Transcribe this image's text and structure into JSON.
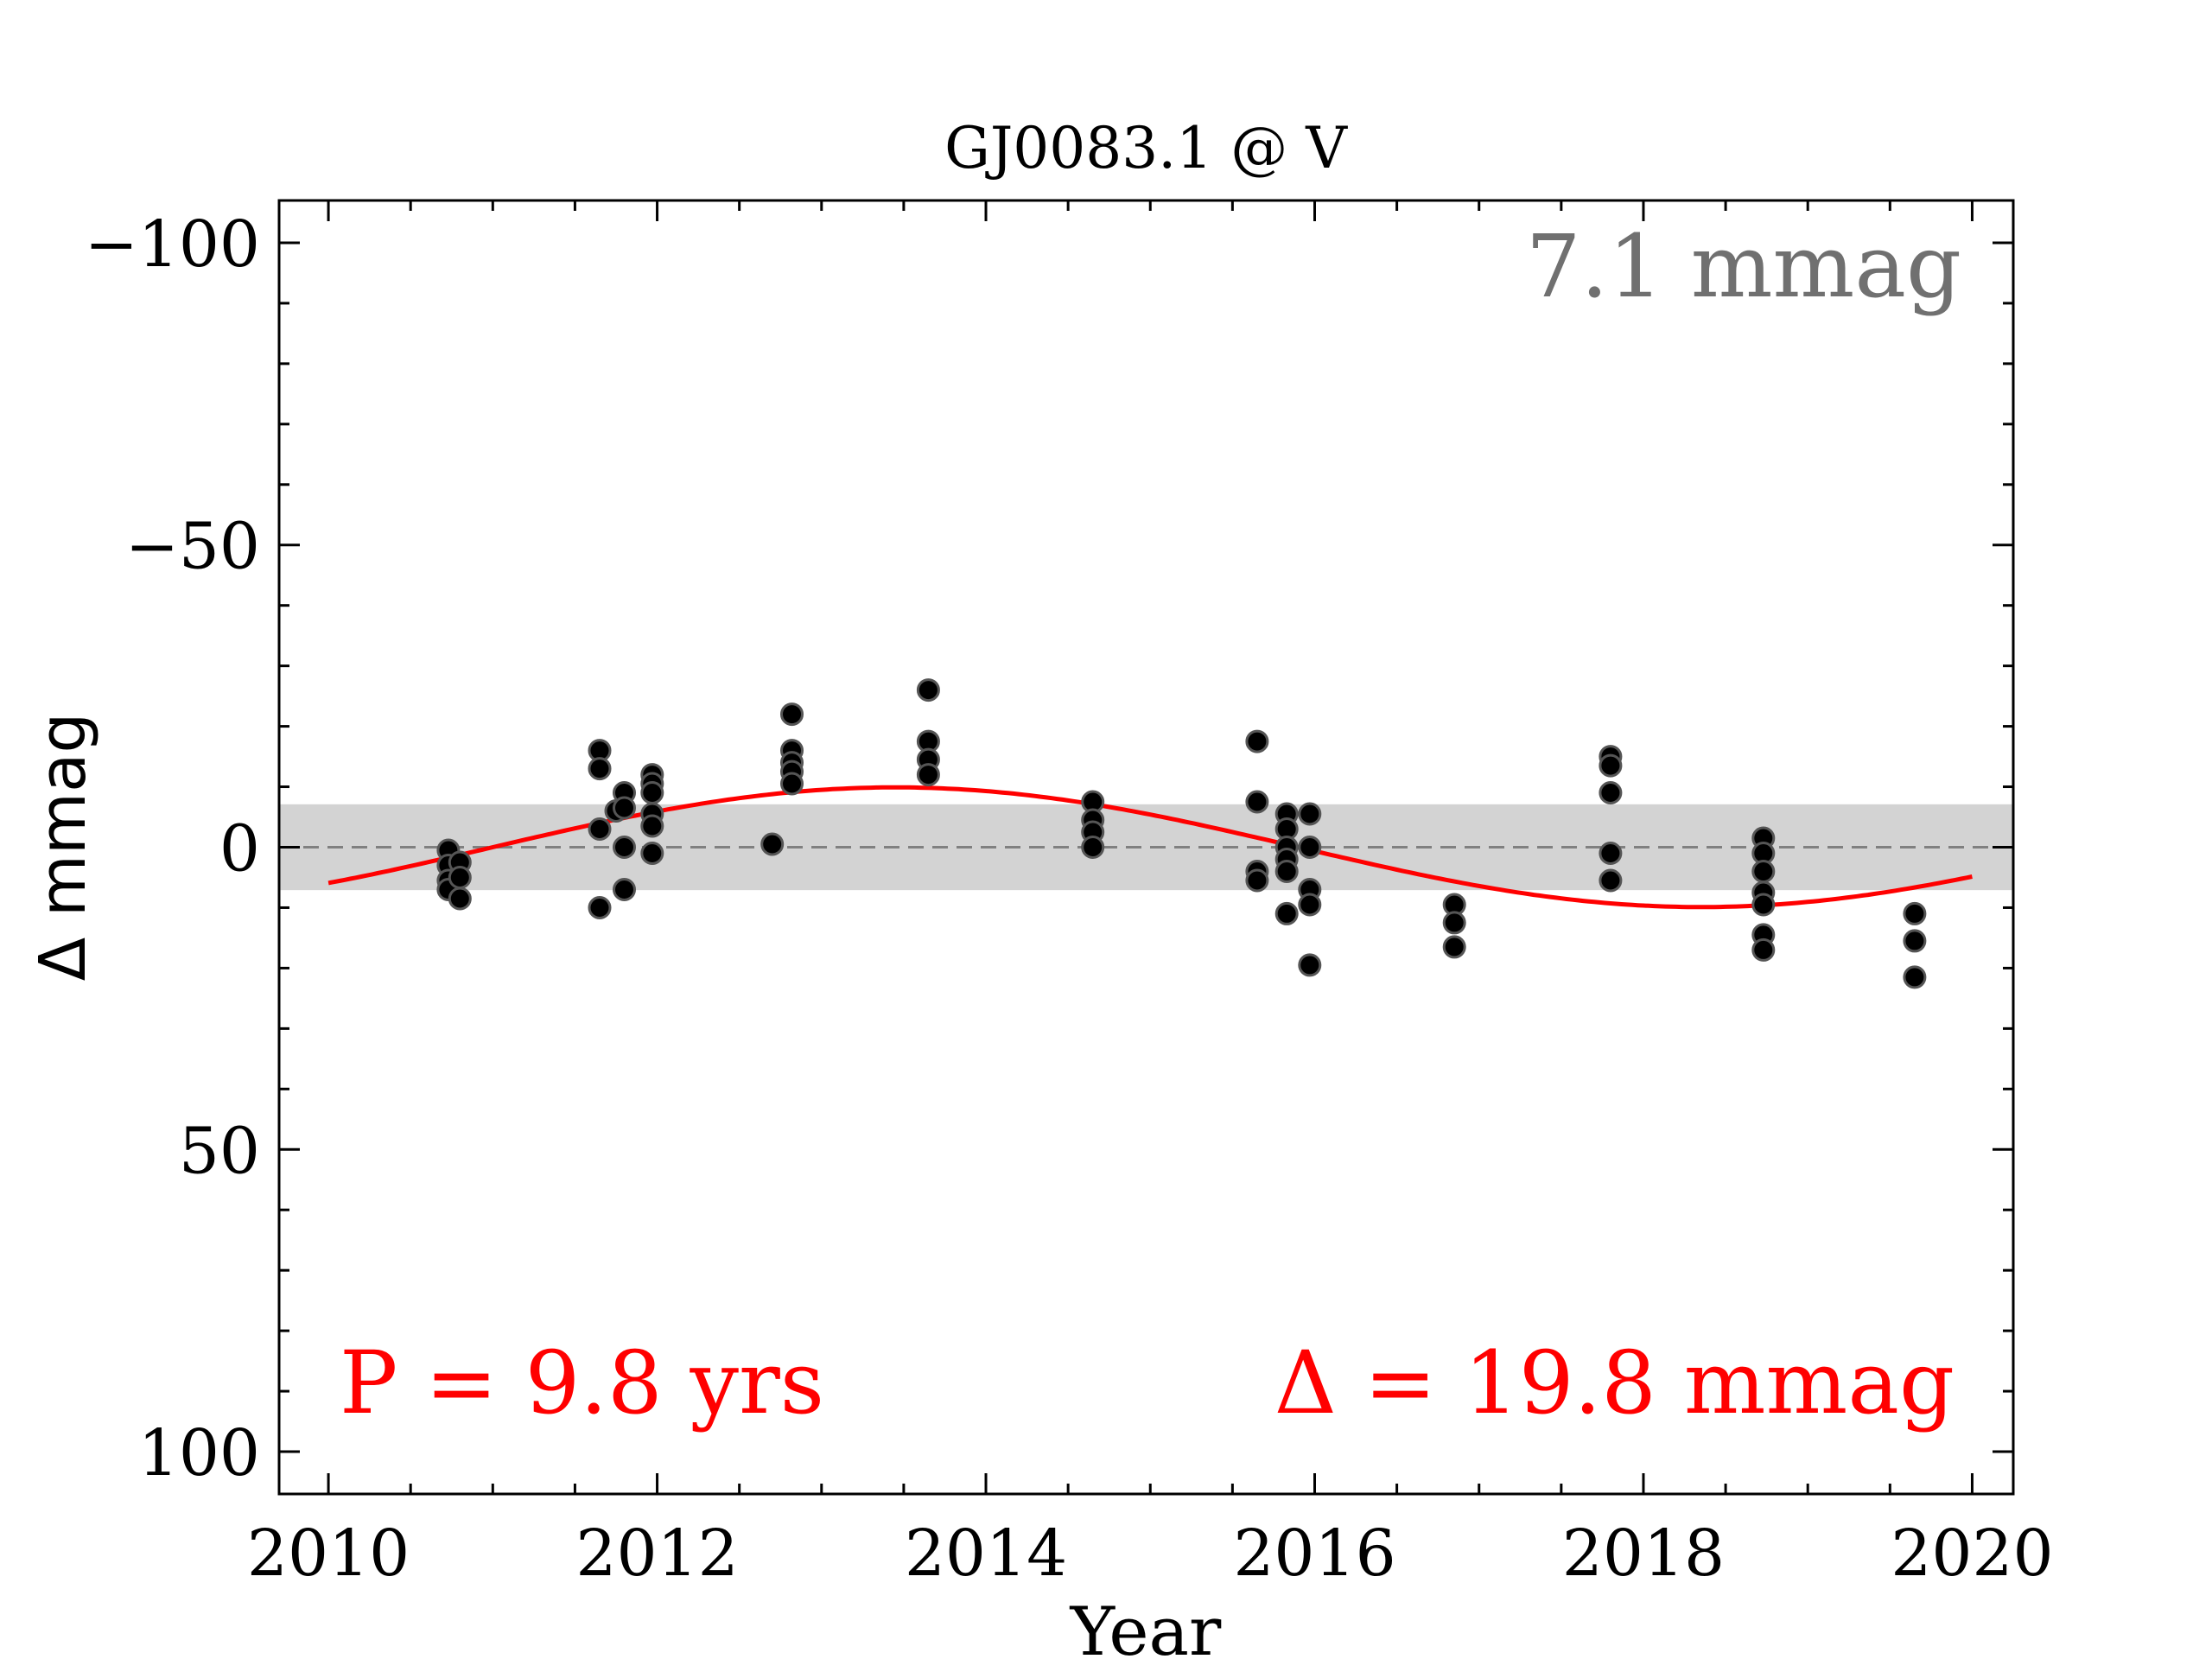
{
  "chart_data": {
    "type": "scatter",
    "title": "GJ0083.1 @ V",
    "xlabel": "Year",
    "ylabel": "Δ  mmag",
    "xlim": [
      2009.7,
      2020.25
    ],
    "ylim": [
      107,
      -107
    ],
    "y_inverted": true,
    "x_ticks": [
      2010,
      2012,
      2014,
      2016,
      2018,
      2020
    ],
    "x_tick_labels": [
      "2010",
      "2012",
      "2014",
      "2016",
      "2018",
      "2020"
    ],
    "y_ticks": [
      -100,
      -50,
      0,
      50,
      100
    ],
    "y_tick_labels": [
      "−100",
      "−50",
      "0",
      "50",
      "100"
    ],
    "rms_label": "7.1 mmag",
    "rms_band": [
      -7.1,
      7.1
    ],
    "period_label": "P = 9.8 yrs",
    "amplitude_label": "Δ = 19.8 mmag",
    "grid": false,
    "colors": {
      "points": "#000000",
      "point_edge": "#555555",
      "fit": "#ff0000",
      "band": "#d3d3d3",
      "zero_line": "#808080",
      "rms_text": "#707070",
      "annotation": "#ff0000"
    },
    "fit": {
      "name": "",
      "period_years": 9.8,
      "amplitude_mmag": 9.9,
      "peak_year": 2013.45,
      "x_range": [
        2010.0,
        2020.0
      ]
    },
    "points": [
      {
        "x": 2010.73,
        "y": 0.5
      },
      {
        "x": 2010.73,
        "y": 3.0
      },
      {
        "x": 2010.73,
        "y": 5.5
      },
      {
        "x": 2010.73,
        "y": 7.0
      },
      {
        "x": 2010.8,
        "y": 2.5
      },
      {
        "x": 2010.8,
        "y": 5.0
      },
      {
        "x": 2010.8,
        "y": 8.5
      },
      {
        "x": 2011.65,
        "y": -16.0
      },
      {
        "x": 2011.65,
        "y": -13.0
      },
      {
        "x": 2011.65,
        "y": -3.0
      },
      {
        "x": 2011.65,
        "y": 10.0
      },
      {
        "x": 2011.75,
        "y": -6.0
      },
      {
        "x": 2011.8,
        "y": -9.0
      },
      {
        "x": 2011.8,
        "y": -6.5
      },
      {
        "x": 2011.8,
        "y": 0.0
      },
      {
        "x": 2011.8,
        "y": 7.0
      },
      {
        "x": 2011.97,
        "y": -12.0
      },
      {
        "x": 2011.97,
        "y": -10.5
      },
      {
        "x": 2011.97,
        "y": -9.0
      },
      {
        "x": 2011.97,
        "y": -5.5
      },
      {
        "x": 2011.97,
        "y": -3.5
      },
      {
        "x": 2011.97,
        "y": 1.0
      },
      {
        "x": 2012.7,
        "y": -0.5
      },
      {
        "x": 2012.82,
        "y": -22.0
      },
      {
        "x": 2012.82,
        "y": -16.0
      },
      {
        "x": 2012.82,
        "y": -14.0
      },
      {
        "x": 2012.82,
        "y": -12.5
      },
      {
        "x": 2012.82,
        "y": -10.5
      },
      {
        "x": 2013.65,
        "y": -26.0
      },
      {
        "x": 2013.65,
        "y": -17.5
      },
      {
        "x": 2013.65,
        "y": -14.5
      },
      {
        "x": 2013.65,
        "y": -12.0
      },
      {
        "x": 2014.65,
        "y": -7.5
      },
      {
        "x": 2014.65,
        "y": -4.5
      },
      {
        "x": 2014.65,
        "y": -2.5
      },
      {
        "x": 2014.65,
        "y": 0.0
      },
      {
        "x": 2015.65,
        "y": -17.5
      },
      {
        "x": 2015.65,
        "y": -7.5
      },
      {
        "x": 2015.65,
        "y": 4.0
      },
      {
        "x": 2015.65,
        "y": 5.5
      },
      {
        "x": 2015.83,
        "y": -5.5
      },
      {
        "x": 2015.83,
        "y": -3.0
      },
      {
        "x": 2015.83,
        "y": 0.0
      },
      {
        "x": 2015.83,
        "y": 2.0
      },
      {
        "x": 2015.83,
        "y": 4.0
      },
      {
        "x": 2015.83,
        "y": 11.0
      },
      {
        "x": 2015.97,
        "y": -5.5
      },
      {
        "x": 2015.97,
        "y": 0.0
      },
      {
        "x": 2015.97,
        "y": 7.0
      },
      {
        "x": 2015.97,
        "y": 9.5
      },
      {
        "x": 2015.97,
        "y": 19.5
      },
      {
        "x": 2016.85,
        "y": 9.5
      },
      {
        "x": 2016.85,
        "y": 12.5
      },
      {
        "x": 2016.85,
        "y": 16.5
      },
      {
        "x": 2017.8,
        "y": -15.0
      },
      {
        "x": 2017.8,
        "y": -13.5
      },
      {
        "x": 2017.8,
        "y": -9.0
      },
      {
        "x": 2017.8,
        "y": 1.0
      },
      {
        "x": 2017.8,
        "y": 5.5
      },
      {
        "x": 2018.73,
        "y": -1.5
      },
      {
        "x": 2018.73,
        "y": 1.0
      },
      {
        "x": 2018.73,
        "y": 4.0
      },
      {
        "x": 2018.73,
        "y": 7.5
      },
      {
        "x": 2018.73,
        "y": 9.5
      },
      {
        "x": 2018.73,
        "y": 14.5
      },
      {
        "x": 2018.73,
        "y": 17.0
      },
      {
        "x": 2019.65,
        "y": 11.0
      },
      {
        "x": 2019.65,
        "y": 15.5
      },
      {
        "x": 2019.65,
        "y": 21.5
      }
    ]
  }
}
